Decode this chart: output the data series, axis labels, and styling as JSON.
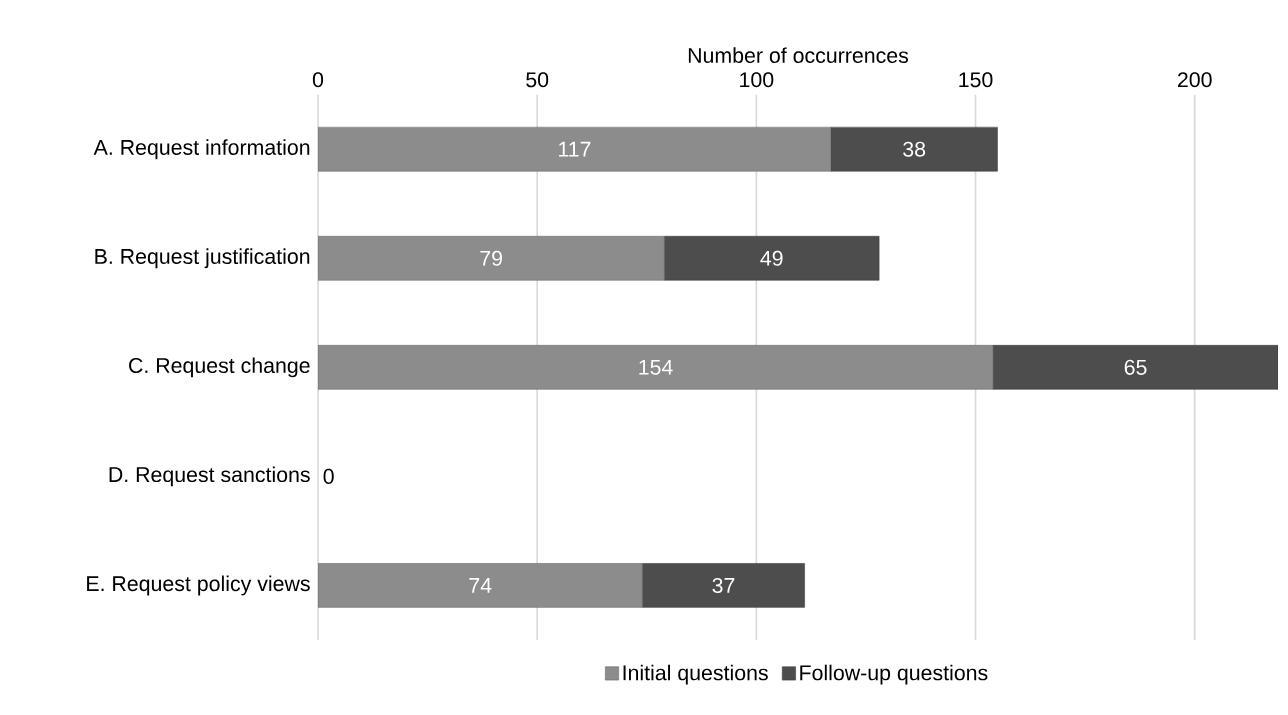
{
  "chart_data": {
    "type": "bar",
    "orientation": "horizontal",
    "stacked": true,
    "xlabel": "Number of occurrences",
    "categories": [
      "A. Request information",
      "B. Request justification",
      "C. Request change",
      "D. Request sanctions",
      "E. Request policy views"
    ],
    "series": [
      {
        "name": "Initial questions",
        "color": "#8c8c8c",
        "values": [
          117,
          79,
          154,
          0,
          74
        ],
        "value_labels": [
          "117",
          "79",
          "154",
          "0",
          "74"
        ]
      },
      {
        "name": "Follow-up questions",
        "color": "#4d4d4d",
        "values": [
          38,
          49,
          65,
          0,
          37
        ],
        "value_labels": [
          "38",
          "49",
          "65",
          null,
          "37"
        ]
      }
    ],
    "xlim": [
      0,
      219
    ],
    "xticks": [
      0,
      50,
      100,
      150,
      200
    ],
    "grid": "x",
    "legend": "bottom"
  }
}
